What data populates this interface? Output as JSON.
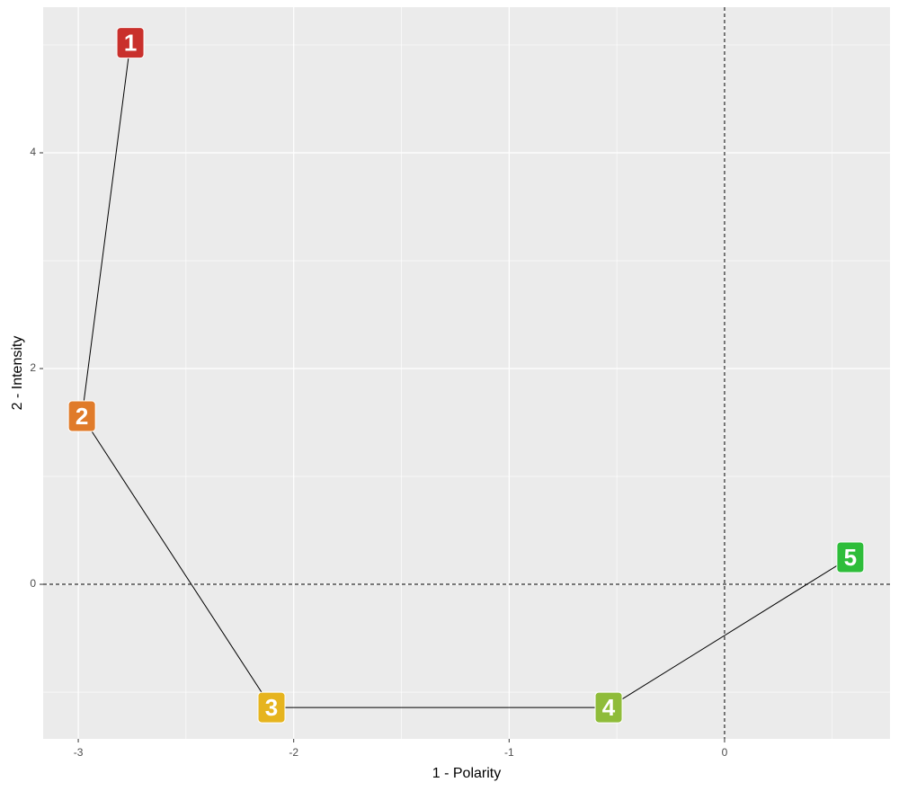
{
  "chart_data": {
    "type": "path",
    "x_label": "1 - Polarity",
    "y_label": "2 - Intensity",
    "labels": [
      "1",
      "2",
      "3",
      "4",
      "5"
    ],
    "x": [
      -2.758,
      -2.983,
      -2.103,
      -0.538,
      0.584
    ],
    "values": [
      5.02,
      1.558,
      -1.142,
      -1.142,
      0.25
    ],
    "colors": [
      "#c9302c",
      "#e07b2a",
      "#e6b41e",
      "#8fbc3a",
      "#2ebd3a"
    ],
    "xlim": [
      -3.163,
      0.768
    ],
    "ylim": [
      -1.433,
      5.35
    ],
    "xticks": [
      -3,
      -2,
      -1,
      0
    ],
    "yticks": [
      0,
      2,
      4
    ],
    "minor_xgrid": [
      -2.5,
      -1.5,
      -0.5,
      0.5
    ],
    "minor_ygrid": [
      -1,
      1,
      3,
      5
    ],
    "vlines": [
      0
    ],
    "hlines": [
      0
    ],
    "grid": true
  }
}
